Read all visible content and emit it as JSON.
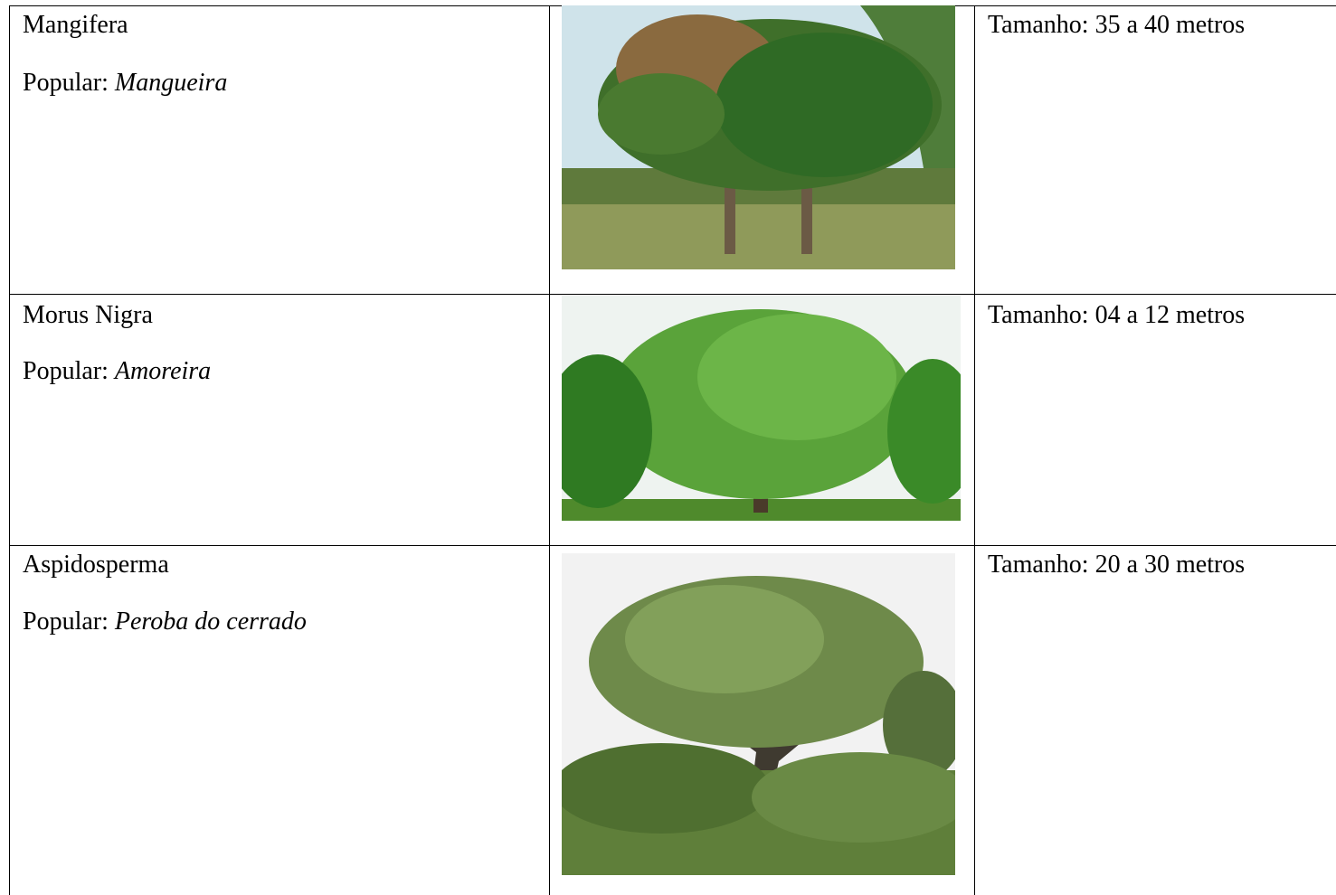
{
  "table": {
    "rows": [
      {
        "name": "Mangifera",
        "popular_label": "Popular:",
        "popular_name": "Mangueira",
        "size": "Tamanho: 35 a 40 metros"
      },
      {
        "name": "Morus Nigra",
        "popular_label": "Popular:",
        "popular_name": "Amoreira",
        "size": "Tamanho: 04 a 12 metros"
      },
      {
        "name": "Aspidosperma",
        "popular_label": "Popular:",
        "popular_name": "Peroba do cerrado",
        "size": "Tamanho: 20 a 30 metros"
      }
    ]
  }
}
